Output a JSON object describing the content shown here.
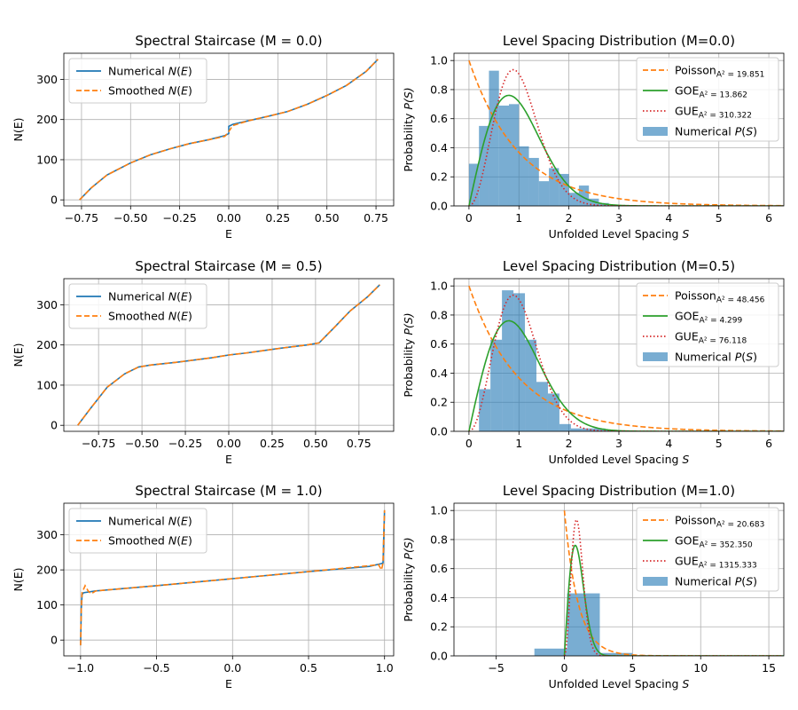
{
  "colors": {
    "numerical_line": "#1f77b4",
    "smoothed": "#ff7f0e",
    "poisson": "#ff7f0e",
    "goe": "#2ca02c",
    "gue": "#d62728",
    "histogram": "#1f77b4"
  },
  "chart_data": [
    {
      "type": "line",
      "title": "Spectral Staircase (M = 0.0)",
      "xlabel": "E",
      "ylabel": "N(E)",
      "xlim": [
        -0.84,
        0.84
      ],
      "ylim": [
        -15,
        365
      ],
      "xticks": [
        -0.75,
        -0.5,
        -0.25,
        0.0,
        0.25,
        0.5,
        0.75
      ],
      "xtick_labels": [
        "−0.75",
        "−0.50",
        "−0.25",
        "0.00",
        "0.25",
        "0.50",
        "0.75"
      ],
      "yticks": [
        0,
        100,
        200,
        300
      ],
      "ytick_labels": [
        "0",
        "100",
        "200",
        "300"
      ],
      "grid": true,
      "legend_position": "upper-left",
      "series": [
        {
          "name": "Numerical",
          "name_math": "N(E)",
          "style": "solid",
          "x": [
            -0.76,
            -0.7,
            -0.62,
            -0.5,
            -0.4,
            -0.3,
            -0.2,
            -0.1,
            -0.02,
            0.0,
            0.0,
            0.02,
            0.1,
            0.2,
            0.3,
            0.4,
            0.5,
            0.6,
            0.7,
            0.76
          ],
          "y": [
            0,
            30,
            62,
            92,
            112,
            127,
            140,
            150,
            160,
            165,
            183,
            188,
            197,
            208,
            220,
            238,
            260,
            285,
            320,
            350
          ]
        },
        {
          "name": "Smoothed",
          "name_math": "N(E)",
          "style": "dashed",
          "x": [
            -0.76,
            -0.7,
            -0.62,
            -0.5,
            -0.4,
            -0.3,
            -0.2,
            -0.1,
            -0.02,
            0.0,
            0.02,
            0.1,
            0.2,
            0.3,
            0.4,
            0.5,
            0.6,
            0.7,
            0.76
          ],
          "y": [
            0,
            30,
            62,
            92,
            112,
            127,
            140,
            150,
            158,
            170,
            185,
            197,
            208,
            220,
            238,
            260,
            285,
            320,
            350
          ]
        }
      ]
    },
    {
      "type": "bar",
      "title": "Level Spacing Distribution (M=0.0)",
      "xlabel": "Unfolded Level Spacing",
      "xlabel_math": "S",
      "ylabel": "Probability",
      "ylabel_math": "P(S)",
      "xlim": [
        -0.3,
        6.3
      ],
      "ylim": [
        0,
        1.05
      ],
      "xticks": [
        0,
        1,
        2,
        3,
        4,
        5,
        6
      ],
      "xtick_labels": [
        "0",
        "1",
        "2",
        "3",
        "4",
        "5",
        "6"
      ],
      "yticks": [
        0.0,
        0.2,
        0.4,
        0.6,
        0.8,
        1.0
      ],
      "ytick_labels": [
        "0.0",
        "0.2",
        "0.4",
        "0.6",
        "0.8",
        "1.0"
      ],
      "grid": true,
      "legend_position": "upper-right",
      "histogram": {
        "name": "Numerical",
        "name_math": "P(S)",
        "bins": [
          0,
          0.2,
          0.4,
          0.6,
          0.8,
          1.0,
          1.2,
          1.4,
          1.6,
          1.8,
          2.0,
          2.2,
          2.4,
          2.6,
          2.8,
          3.0
        ],
        "values": [
          0.29,
          0.55,
          0.93,
          0.69,
          0.7,
          0.41,
          0.33,
          0.17,
          0.26,
          0.22,
          0.09,
          0.14,
          0.05,
          0.02,
          0.0
        ]
      },
      "curves": [
        {
          "name": "Poisson",
          "sub": "A² = 19.851",
          "kind": "poisson",
          "style": "dashed"
        },
        {
          "name": "GOE",
          "sub": "A² = 13.862",
          "kind": "goe",
          "style": "solid"
        },
        {
          "name": "GUE",
          "sub": "A² = 310.322",
          "kind": "gue",
          "style": "dotted"
        }
      ]
    },
    {
      "type": "line",
      "title": "Spectral Staircase (M = 0.5)",
      "xlabel": "E",
      "ylabel": "N(E)",
      "xlim": [
        -0.95,
        0.95
      ],
      "ylim": [
        -15,
        365
      ],
      "xticks": [
        -0.75,
        -0.5,
        -0.25,
        0.0,
        0.25,
        0.5,
        0.75
      ],
      "xtick_labels": [
        "−0.75",
        "−0.50",
        "−0.25",
        "0.00",
        "0.25",
        "0.50",
        "0.75"
      ],
      "yticks": [
        0,
        100,
        200,
        300
      ],
      "ytick_labels": [
        "0",
        "100",
        "200",
        "300"
      ],
      "grid": true,
      "legend_position": "upper-left",
      "series": [
        {
          "name": "Numerical",
          "name_math": "N(E)",
          "style": "solid",
          "x": [
            -0.87,
            -0.8,
            -0.7,
            -0.6,
            -0.52,
            -0.45,
            -0.3,
            -0.1,
            0.0,
            0.1,
            0.3,
            0.45,
            0.52,
            0.6,
            0.7,
            0.8,
            0.87
          ],
          "y": [
            0,
            40,
            95,
            128,
            145,
            150,
            157,
            168,
            175,
            180,
            192,
            200,
            205,
            240,
            285,
            320,
            350
          ]
        },
        {
          "name": "Smoothed",
          "name_math": "N(E)",
          "style": "dashed",
          "x": [
            -0.87,
            -0.8,
            -0.7,
            -0.6,
            -0.52,
            -0.45,
            -0.3,
            -0.1,
            0.0,
            0.1,
            0.3,
            0.45,
            0.52,
            0.6,
            0.7,
            0.8,
            0.87
          ],
          "y": [
            0,
            40,
            95,
            128,
            145,
            150,
            157,
            168,
            175,
            180,
            192,
            200,
            205,
            240,
            285,
            320,
            350
          ]
        }
      ]
    },
    {
      "type": "bar",
      "title": "Level Spacing Distribution (M=0.5)",
      "xlabel": "Unfolded Level Spacing",
      "xlabel_math": "S",
      "ylabel": "Probability",
      "ylabel_math": "P(S)",
      "xlim": [
        -0.3,
        6.3
      ],
      "ylim": [
        0,
        1.05
      ],
      "xticks": [
        0,
        1,
        2,
        3,
        4,
        5,
        6
      ],
      "xtick_labels": [
        "0",
        "1",
        "2",
        "3",
        "4",
        "5",
        "6"
      ],
      "yticks": [
        0.0,
        0.2,
        0.4,
        0.6,
        0.8,
        1.0
      ],
      "ytick_labels": [
        "0.0",
        "0.2",
        "0.4",
        "0.6",
        "0.8",
        "1.0"
      ],
      "grid": true,
      "legend_position": "upper-right",
      "histogram": {
        "name": "Numerical",
        "name_math": "P(S)",
        "bins": [
          0.2,
          0.43,
          0.66,
          0.89,
          1.12,
          1.35,
          1.58,
          1.81,
          2.04,
          2.27,
          2.5,
          2.73,
          2.96
        ],
        "values": [
          0.29,
          0.63,
          0.97,
          0.95,
          0.63,
          0.34,
          0.26,
          0.05,
          0.02,
          0.02,
          0.02,
          0.01
        ]
      },
      "curves": [
        {
          "name": "Poisson",
          "sub": "A² = 48.456",
          "kind": "poisson",
          "style": "dashed"
        },
        {
          "name": "GOE",
          "sub": "A² = 4.299",
          "kind": "goe",
          "style": "solid"
        },
        {
          "name": "GUE",
          "sub": "A² = 76.118",
          "kind": "gue",
          "style": "dotted"
        }
      ]
    },
    {
      "type": "line",
      "title": "Spectral Staircase (M = 1.0)",
      "xlabel": "E",
      "ylabel": "N(E)",
      "xlim": [
        -1.11,
        1.06
      ],
      "ylim": [
        -45,
        390
      ],
      "xticks": [
        -1.0,
        -0.5,
        0.0,
        0.5,
        1.0
      ],
      "xtick_labels": [
        "−1.0",
        "−0.5",
        "0.0",
        "0.5",
        "1.0"
      ],
      "yticks": [
        0,
        100,
        200,
        300
      ],
      "ytick_labels": [
        "0",
        "100",
        "200",
        "300"
      ],
      "grid": true,
      "legend_position": "upper-left",
      "series": [
        {
          "name": "Numerical",
          "name_math": "N(E)",
          "style": "solid",
          "x": [
            -1.0,
            -0.995,
            -0.99,
            -0.98,
            -0.9,
            -0.5,
            0.0,
            0.5,
            0.9,
            0.98,
            0.99,
            0.995,
            1.0
          ],
          "y": [
            -15,
            90,
            130,
            135,
            140,
            155,
            175,
            195,
            210,
            218,
            220,
            300,
            370
          ]
        },
        {
          "name": "Smoothed",
          "name_math": "N(E)",
          "style": "dashed",
          "x": [
            -1.0,
            -0.995,
            -0.99,
            -0.97,
            -0.95,
            -0.93,
            -0.9,
            -0.5,
            0.0,
            0.5,
            0.9,
            0.96,
            0.98,
            0.99,
            0.995,
            1.0
          ],
          "y": [
            -15,
            90,
            135,
            155,
            140,
            132,
            140,
            155,
            175,
            195,
            212,
            215,
            200,
            220,
            300,
            370
          ]
        }
      ]
    },
    {
      "type": "bar",
      "title": "Level Spacing Distribution (M=1.0)",
      "xlabel": "Unfolded Level Spacing",
      "xlabel_math": "S",
      "ylabel": "Probability",
      "ylabel_math": "P(S)",
      "xlim": [
        -8.1,
        16.1
      ],
      "ylim": [
        0,
        1.05
      ],
      "xticks": [
        -5,
        0,
        5,
        10,
        15
      ],
      "xtick_labels": [
        "−5",
        "0",
        "5",
        "10",
        "15"
      ],
      "yticks": [
        0.0,
        0.2,
        0.4,
        0.6,
        0.8,
        1.0
      ],
      "ytick_labels": [
        "0.0",
        "0.2",
        "0.4",
        "0.6",
        "0.8",
        "1.0"
      ],
      "grid": true,
      "legend_position": "upper-right",
      "histogram": {
        "name": "Numerical",
        "name_math": "P(S)",
        "bins": [
          -7.0,
          -4.6,
          -2.2,
          0.2,
          2.6,
          5.0,
          7.4,
          9.8,
          12.2,
          14.6
        ],
        "values": [
          0.003,
          0.003,
          0.05,
          0.43,
          0.02,
          0.003,
          0.003,
          0.003,
          0.003
        ]
      },
      "curves": [
        {
          "name": "Poisson",
          "sub": "A² = 20.683",
          "kind": "poisson",
          "style": "dashed"
        },
        {
          "name": "GOE",
          "sub": "A² = 352.350",
          "kind": "goe",
          "style": "solid"
        },
        {
          "name": "GUE",
          "sub": "A² = 1315.333",
          "kind": "gue",
          "style": "dotted"
        }
      ]
    }
  ]
}
